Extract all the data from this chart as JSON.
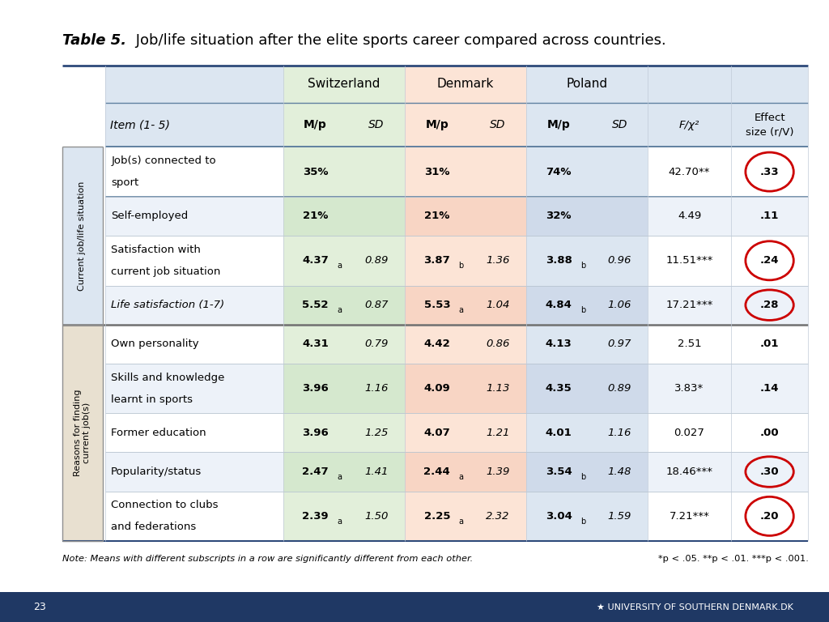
{
  "title_bold": "Table 5.",
  "title_rest": " Job/life situation after the elite sports career compared across countries.",
  "country_headers": [
    "Switzerland",
    "Denmark",
    "Poland"
  ],
  "rows": [
    {
      "item": "Job(s) connected to\nsport",
      "sw_mp": "35%",
      "sw_sd": "",
      "dk_mp": "31%",
      "dk_sd": "",
      "pl_mp": "74%",
      "pl_sd": "",
      "f": "42.70**",
      "es": ".33",
      "section": 0,
      "circle": true
    },
    {
      "item": "Self-employed",
      "sw_mp": "21%",
      "sw_sd": "",
      "dk_mp": "21%",
      "dk_sd": "",
      "pl_mp": "32%",
      "pl_sd": "",
      "f": "4.49",
      "es": ".11",
      "section": 0,
      "circle": false
    },
    {
      "item": "Satisfaction with\ncurrent job situation",
      "sw_mp": "4.37a",
      "sw_sd": "0.89",
      "dk_mp": "3.87b",
      "dk_sd": "1.36",
      "pl_mp": "3.88b",
      "pl_sd": "0.96",
      "f": "11.51***",
      "es": ".24",
      "section": 0,
      "circle": true
    },
    {
      "item": "Life satisfaction (1-7)",
      "sw_mp": "5.52a",
      "sw_sd": "0.87",
      "dk_mp": "5.53a",
      "dk_sd": "1.04",
      "pl_mp": "4.84b",
      "pl_sd": "1.06",
      "f": "17.21***",
      "es": ".28",
      "section": 0,
      "circle": true
    },
    {
      "item": "Own personality",
      "sw_mp": "4.31",
      "sw_sd": "0.79",
      "dk_mp": "4.42",
      "dk_sd": "0.86",
      "pl_mp": "4.13",
      "pl_sd": "0.97",
      "f": "2.51",
      "es": ".01",
      "section": 1,
      "circle": false
    },
    {
      "item": "Skills and knowledge\nlearnt in sports",
      "sw_mp": "3.96",
      "sw_sd": "1.16",
      "dk_mp": "4.09",
      "dk_sd": "1.13",
      "pl_mp": "4.35",
      "pl_sd": "0.89",
      "f": "3.83*",
      "es": ".14",
      "section": 1,
      "circle": false
    },
    {
      "item": "Former education",
      "sw_mp": "3.96",
      "sw_sd": "1.25",
      "dk_mp": "4.07",
      "dk_sd": "1.21",
      "pl_mp": "4.01",
      "pl_sd": "1.16",
      "f": "0.027",
      "es": ".00",
      "section": 1,
      "circle": false
    },
    {
      "item": "Popularity/status",
      "sw_mp": "2.47a",
      "sw_sd": "1.41",
      "dk_mp": "2.44a",
      "dk_sd": "1.39",
      "pl_mp": "3.54b",
      "pl_sd": "1.48",
      "f": "18.46***",
      "es": ".30",
      "section": 1,
      "circle": true
    },
    {
      "item": "Connection to clubs\nand federations",
      "sw_mp": "2.39a",
      "sw_sd": "1.50",
      "dk_mp": "2.25a",
      "dk_sd": "2.32",
      "pl_mp": "3.04b",
      "pl_sd": "1.59",
      "f": "7.21***",
      "es": ".20",
      "section": 1,
      "circle": true
    }
  ],
  "note": "Note: Means with different subscripts in a row are significantly different from each other.",
  "sig_note": "*p < .05. **p < .01. ***p < .001.",
  "bg_color": "#ffffff",
  "header_bg": "#dce6f1",
  "sw_col_bg": "#e2efda",
  "dk_col_bg": "#fce4d6",
  "pl_col_bg": "#dce6f1",
  "row_alt_bg": "#edf2f9",
  "section0_label_bg": "#dce6f1",
  "section1_label_bg": "#e8e0d0",
  "circle_color": "#cc0000",
  "footer_bg": "#1f3864",
  "footer_text": "#ffffff"
}
